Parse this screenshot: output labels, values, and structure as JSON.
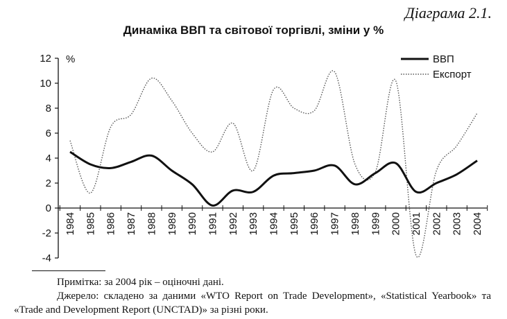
{
  "caption": "Діаграма 2.1.",
  "chart_data": {
    "type": "line",
    "title": "Динаміка ВВП та світової торгівлі, зміни у %",
    "ylabel": "%",
    "xlabel": "",
    "ylim": [
      -4,
      12
    ],
    "yticks": [
      "12",
      "10",
      "8",
      "6",
      "4",
      "2",
      "0",
      "-2",
      "-4"
    ],
    "categories": [
      "1984",
      "1985",
      "1986",
      "1987",
      "1988",
      "1989",
      "1990",
      "1991",
      "1992",
      "1993",
      "1994",
      "1995",
      "1996",
      "1997",
      "1998",
      "1999",
      "2000",
      "2001",
      "2002",
      "2003",
      "2004"
    ],
    "legend_position": "top-right",
    "grid": false,
    "series": [
      {
        "name": "ВВП",
        "style": "solid-thick",
        "color": "#111111",
        "values": [
          4.5,
          3.5,
          3.2,
          3.7,
          4.2,
          3.0,
          1.9,
          0.2,
          1.4,
          1.3,
          2.6,
          2.8,
          3.0,
          3.4,
          1.9,
          2.8,
          3.6,
          1.3,
          2.0,
          2.7,
          3.8
        ]
      },
      {
        "name": "Експорт",
        "style": "dotted",
        "color": "#555555",
        "values": [
          5.4,
          1.2,
          6.5,
          7.5,
          10.4,
          8.6,
          6.0,
          4.5,
          6.8,
          3.0,
          9.5,
          8.0,
          7.8,
          10.9,
          3.5,
          2.9,
          10.2,
          -3.8,
          3.0,
          5.0,
          7.6
        ]
      }
    ]
  },
  "notes": {
    "note": "Примітка: за 2004 рік – оціночні дані.",
    "source": "Джерело: складено за даними «WTO Report on Trade Development», «Statistical Yearbook» та «Trade and Development Report (UNCTAD)» за різні роки."
  }
}
